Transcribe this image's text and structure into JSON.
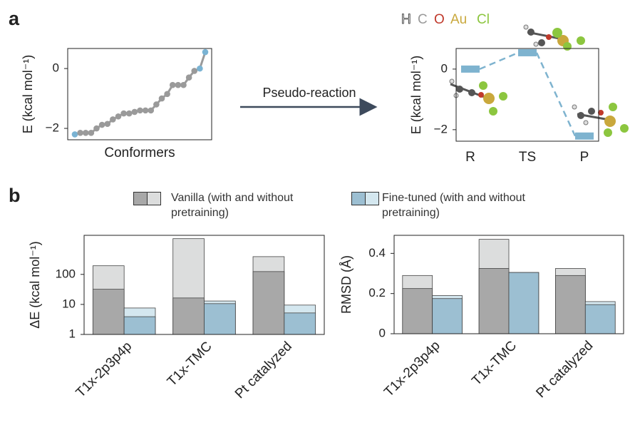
{
  "panel_labels": [
    "a",
    "b"
  ],
  "arrow_label": "Pseudo-reaction",
  "atom_legend": [
    {
      "label": "H",
      "color": "#ffffff"
    },
    {
      "label": "C",
      "color": "#9a9a9a"
    },
    {
      "label": "O",
      "color": "#c0392b"
    },
    {
      "label": "Au",
      "color": "#c9a83c"
    },
    {
      "label": "Cl",
      "color": "#8cc63f"
    }
  ],
  "legend": [
    "Vanilla (with and without pretraining)",
    "Fine-tuned (with and without pretraining)"
  ],
  "chart_data": [
    {
      "type": "line",
      "xlabel": "Conformers",
      "ylabel": "E (kcal mol⁻¹)",
      "values": [
        -2.2,
        -2.15,
        -2.15,
        -2.15,
        -2.0,
        -1.88,
        -1.85,
        -1.7,
        -1.6,
        -1.5,
        -1.5,
        -1.45,
        -1.4,
        -1.4,
        -1.4,
        -1.2,
        -1.0,
        -0.85,
        -0.55,
        -0.55,
        -0.55,
        -0.3,
        -0.08,
        0.0,
        0.55
      ],
      "color": "#9a9a9a",
      "point_colors": [
        "#7ab3d3",
        "#9a9a9a",
        "#9a9a9a",
        "#9a9a9a",
        "#9a9a9a",
        "#9a9a9a",
        "#9a9a9a",
        "#9a9a9a",
        "#9a9a9a",
        "#9a9a9a",
        "#9a9a9a",
        "#9a9a9a",
        "#9a9a9a",
        "#9a9a9a",
        "#9a9a9a",
        "#9a9a9a",
        "#9a9a9a",
        "#9a9a9a",
        "#9a9a9a",
        "#9a9a9a",
        "#9a9a9a",
        "#9a9a9a",
        "#9a9a9a",
        "#7ab3d3",
        "#7ab3d3"
      ],
      "ylim": [
        -2.38,
        0.67
      ],
      "yticks": [
        {
          "value": 0,
          "label": "0"
        },
        {
          "value": -2,
          "label": "−2"
        }
      ]
    },
    {
      "type": "energy",
      "ylabel": "E (kcal mol⁻¹)",
      "categories": [
        "R",
        "TS",
        "P"
      ],
      "values": [
        0,
        0.54,
        -2.21
      ],
      "color": "#7eb3cf",
      "ylim": [
        -2.38,
        0.68
      ],
      "yticks": [
        {
          "value": 0,
          "label": "0"
        },
        {
          "value": -2,
          "label": "−2"
        }
      ]
    },
    {
      "type": "bar",
      "ylabel": "ΔE (kcal mol⁻¹)",
      "log_scale": true,
      "categories": [
        "T1x-2p3p4p",
        "T1x-TMC",
        "Pt catalyzed"
      ],
      "series": [
        {
          "colors": [
            "#a8a8a8",
            "#dcdddd"
          ],
          "values": [
            32,
            16.4,
            124
          ],
          "values_without_pretraining": [
            194,
            1550,
            390
          ]
        },
        {
          "colors": [
            "#9cbfd2",
            "#d4e7ef"
          ],
          "values": [
            3.9,
            10.6,
            5.2
          ],
          "values_without_pretraining": [
            7.6,
            13,
            9.5
          ]
        }
      ],
      "ylim": [
        1,
        2000
      ],
      "yticks": [
        1,
        10,
        100
      ]
    },
    {
      "type": "bar",
      "ylabel": "RMSD (Å)",
      "categories": [
        "T1x-2p3p4p",
        "T1x-TMC",
        "Pt catalyzed"
      ],
      "series": [
        {
          "colors": [
            "#a8a8a8",
            "#dcdddd"
          ],
          "values": [
            0.225,
            0.325,
            0.29
          ],
          "values_without_pretraining": [
            0.29,
            0.47,
            0.325
          ]
        },
        {
          "colors": [
            "#9cbfd2",
            "#d4e7ef"
          ],
          "values": [
            0.175,
            0.305,
            0.145
          ],
          "values_without_pretraining": [
            0.19,
            0.305,
            0.16
          ]
        }
      ],
      "ylim": [
        0,
        0.49
      ],
      "yticks": [
        0,
        0.2,
        0.4
      ]
    }
  ]
}
